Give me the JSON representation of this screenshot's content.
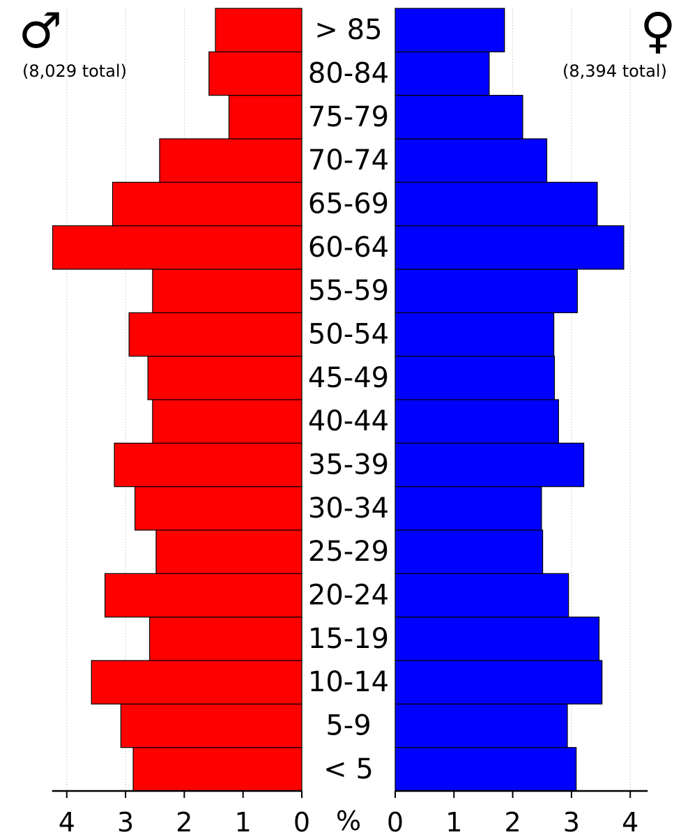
{
  "chart_data": {
    "type": "bar",
    "orientation": "horizontal",
    "layout": "population-pyramid",
    "categories": [
      "< 5",
      "5-9",
      "10-14",
      "15-19",
      "20-24",
      "25-29",
      "30-34",
      "35-39",
      "40-44",
      "45-49",
      "50-54",
      "55-59",
      "60-64",
      "65-69",
      "70-74",
      "75-79",
      "80-84",
      "> 85"
    ],
    "series": [
      {
        "side": "left",
        "symbol": "♂",
        "total_label": "(8,029 total)",
        "color": "#ff0000",
        "values": [
          2.87,
          3.08,
          3.58,
          2.59,
          3.35,
          2.48,
          2.84,
          3.19,
          2.54,
          2.62,
          2.94,
          2.54,
          4.24,
          3.22,
          2.42,
          1.24,
          1.58,
          1.47
        ]
      },
      {
        "side": "right",
        "symbol": "♀",
        "total_label": "(8,394 total)",
        "color": "#0000ff",
        "values": [
          3.08,
          2.93,
          3.52,
          3.47,
          2.95,
          2.51,
          2.49,
          3.21,
          2.78,
          2.71,
          2.7,
          3.1,
          3.89,
          3.44,
          2.58,
          2.17,
          1.6,
          1.86
        ]
      }
    ],
    "xticks": [
      0,
      1,
      2,
      3,
      4
    ],
    "xunit_label": "%",
    "xlim": [
      0,
      4.25
    ],
    "grid": true
  }
}
